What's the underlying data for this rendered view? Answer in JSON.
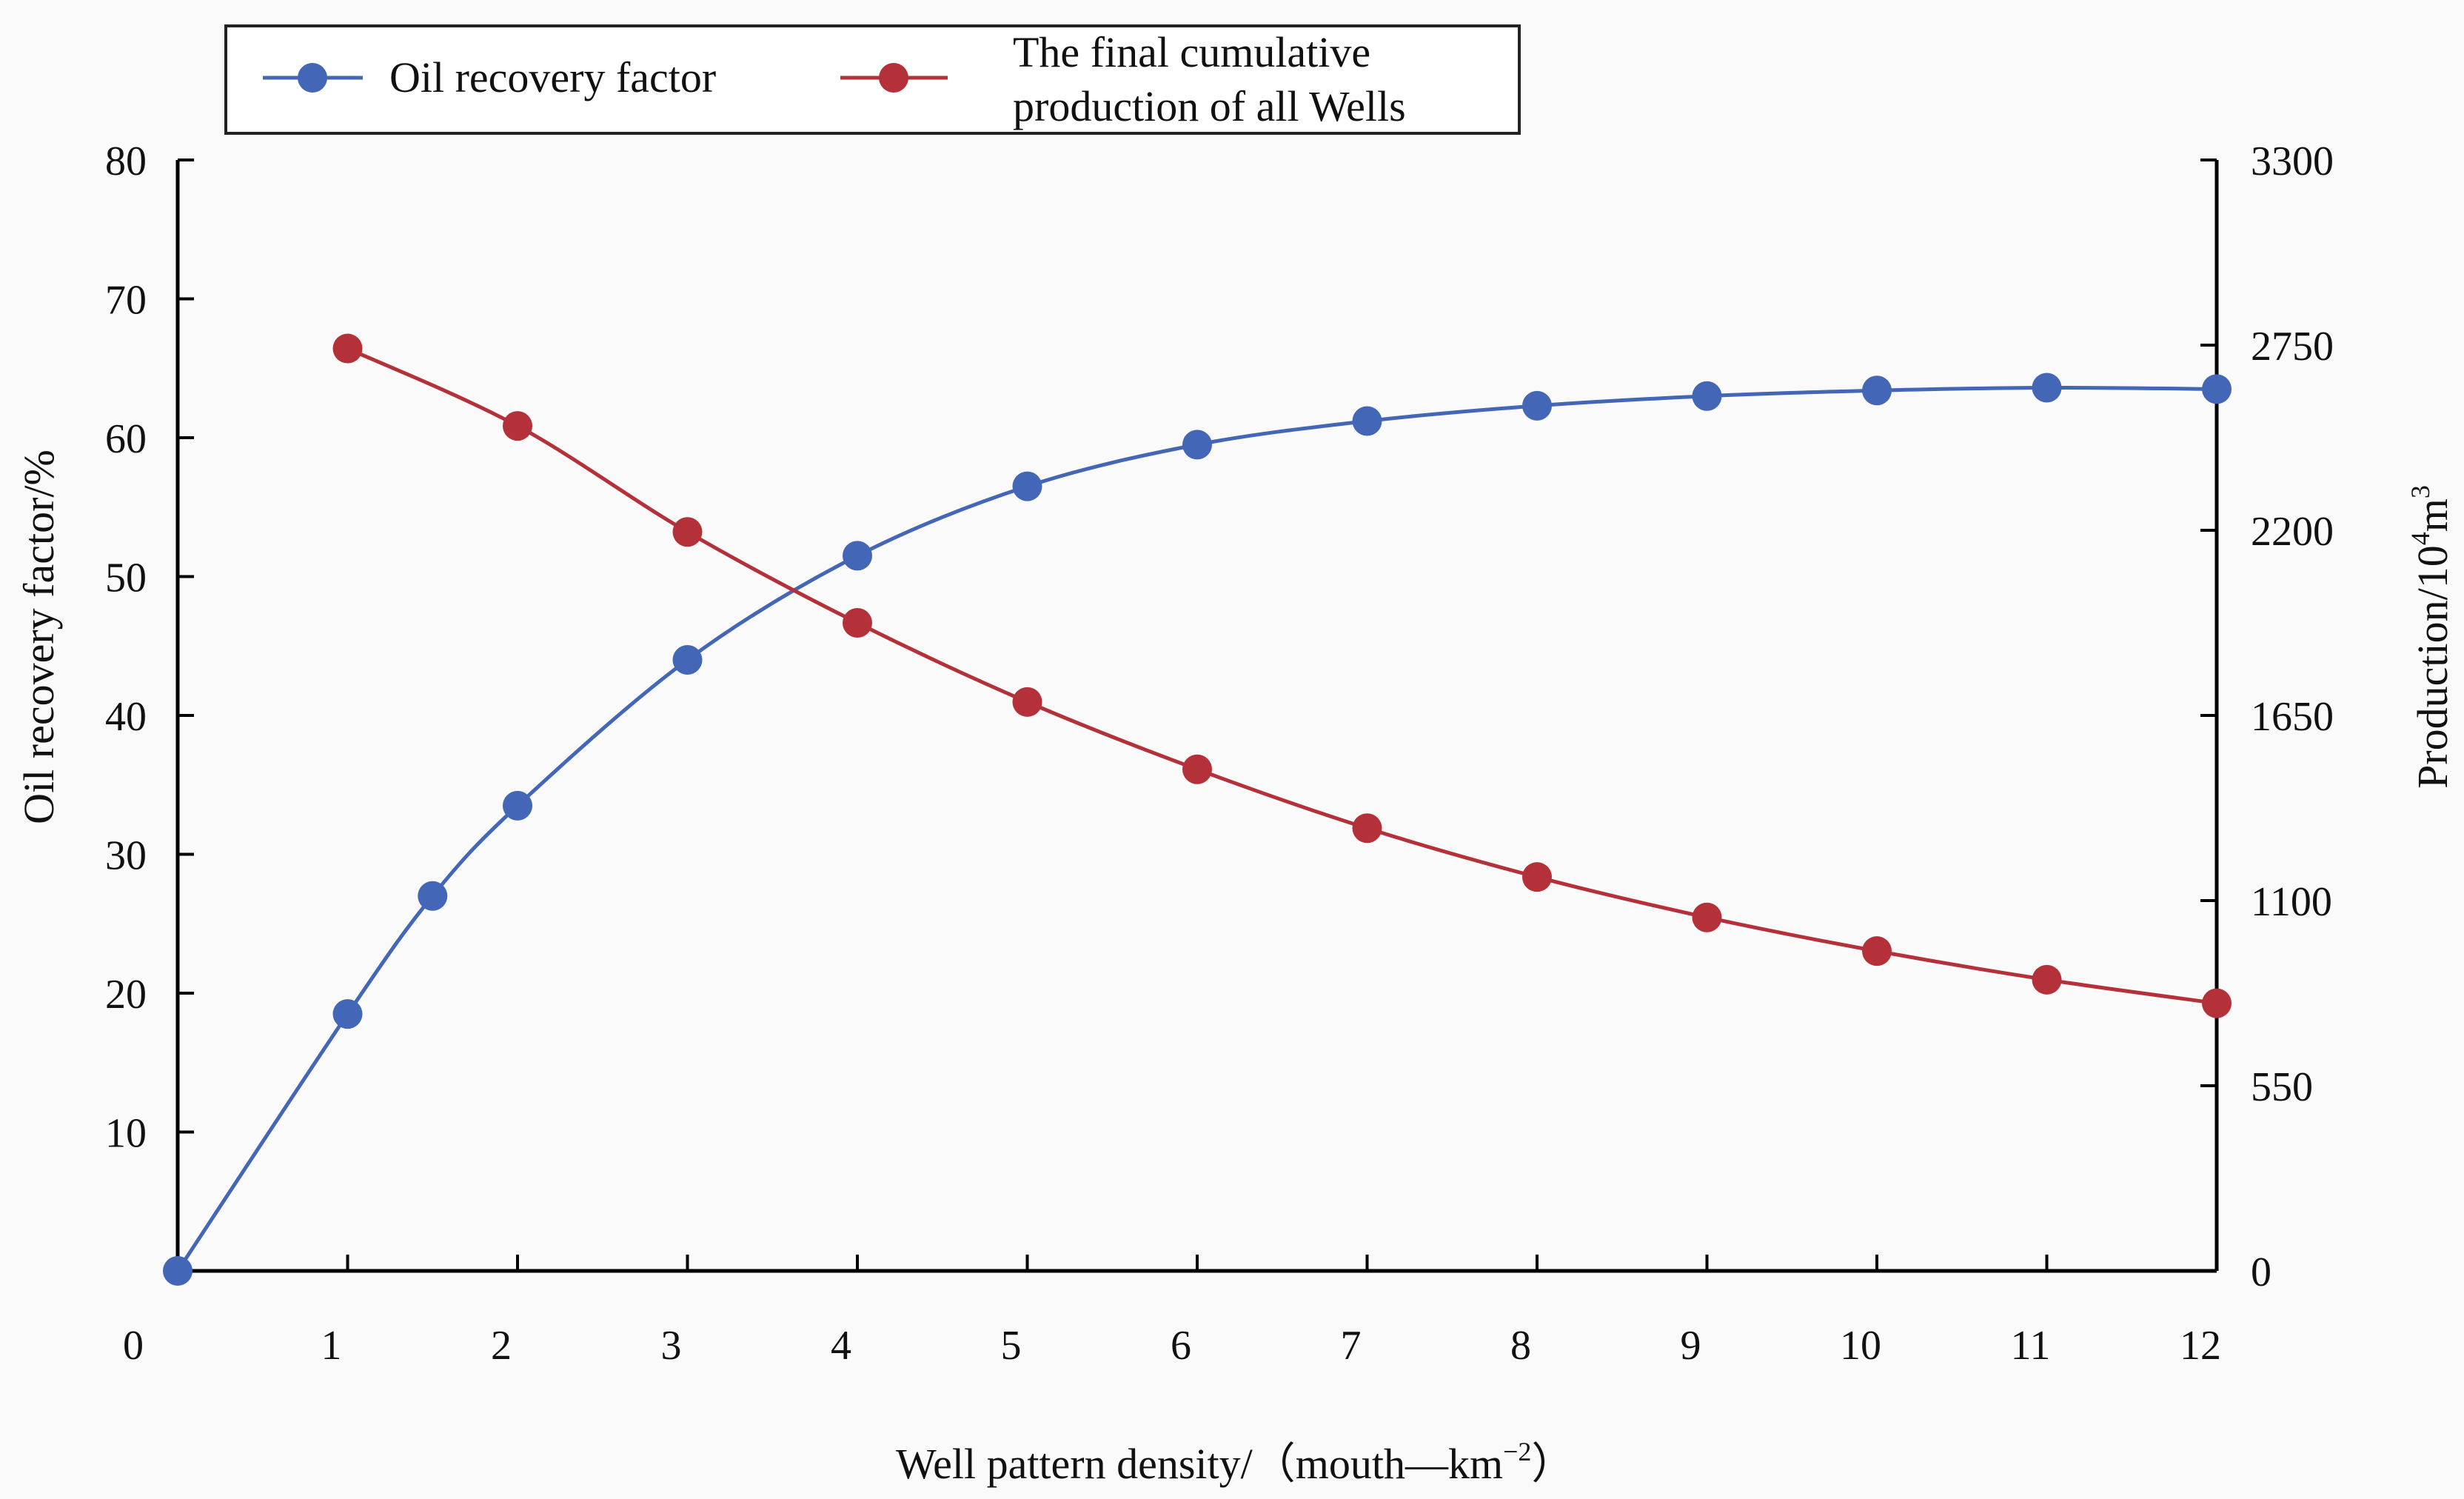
{
  "chart_data": {
    "type": "line",
    "title": "",
    "xlabel": "Well pattern density/（mouth—km",
    "xlabel_sup": "−2",
    "xlabel_close": "）",
    "ylabel_left": "Oil recovery factor/%",
    "ylabel_right": "Production/10",
    "ylabel_right_sup1": "4",
    "ylabel_right_unit": "m",
    "ylabel_right_sup2": "3",
    "x_ticks": [
      "0",
      "1",
      "2",
      "3",
      "4",
      "5",
      "6",
      "7",
      "8",
      "9",
      "10",
      "11",
      "12"
    ],
    "y_left_ticks": [
      "10",
      "20",
      "30",
      "40",
      "50",
      "60",
      "70",
      "80"
    ],
    "y_right_ticks": [
      "0",
      "550",
      "1100",
      "1650",
      "2200",
      "2750",
      "3300"
    ],
    "xlim": [
      0,
      12
    ],
    "ylim_left": [
      0,
      80
    ],
    "ylim_right": [
      0,
      3300
    ],
    "legend": {
      "placement": "top-left",
      "entries": [
        {
          "label": "Oil recovery factor"
        },
        {
          "label_line1": "The final cumulative",
          "label_line2": "production of all Wells"
        }
      ]
    },
    "series": [
      {
        "name": "Oil recovery factor",
        "axis": "left",
        "color": "#4466b6",
        "x": [
          0,
          1,
          1.5,
          2,
          3,
          4,
          5,
          6,
          7,
          8,
          9,
          10,
          11,
          12
        ],
        "values": [
          0,
          18.5,
          27,
          33.5,
          44,
          51.5,
          56.5,
          59.5,
          61.2,
          62.3,
          63,
          63.4,
          63.6,
          63.5
        ]
      },
      {
        "name": "The final cumulative production of all Wells",
        "axis": "right",
        "color": "#b5313a",
        "x": [
          1,
          2,
          3,
          4,
          5,
          6,
          7,
          8,
          9,
          10,
          11,
          12
        ],
        "values": [
          2740,
          2510,
          2195,
          1925,
          1690,
          1490,
          1315,
          1170,
          1050,
          950,
          865,
          795
        ]
      }
    ]
  }
}
